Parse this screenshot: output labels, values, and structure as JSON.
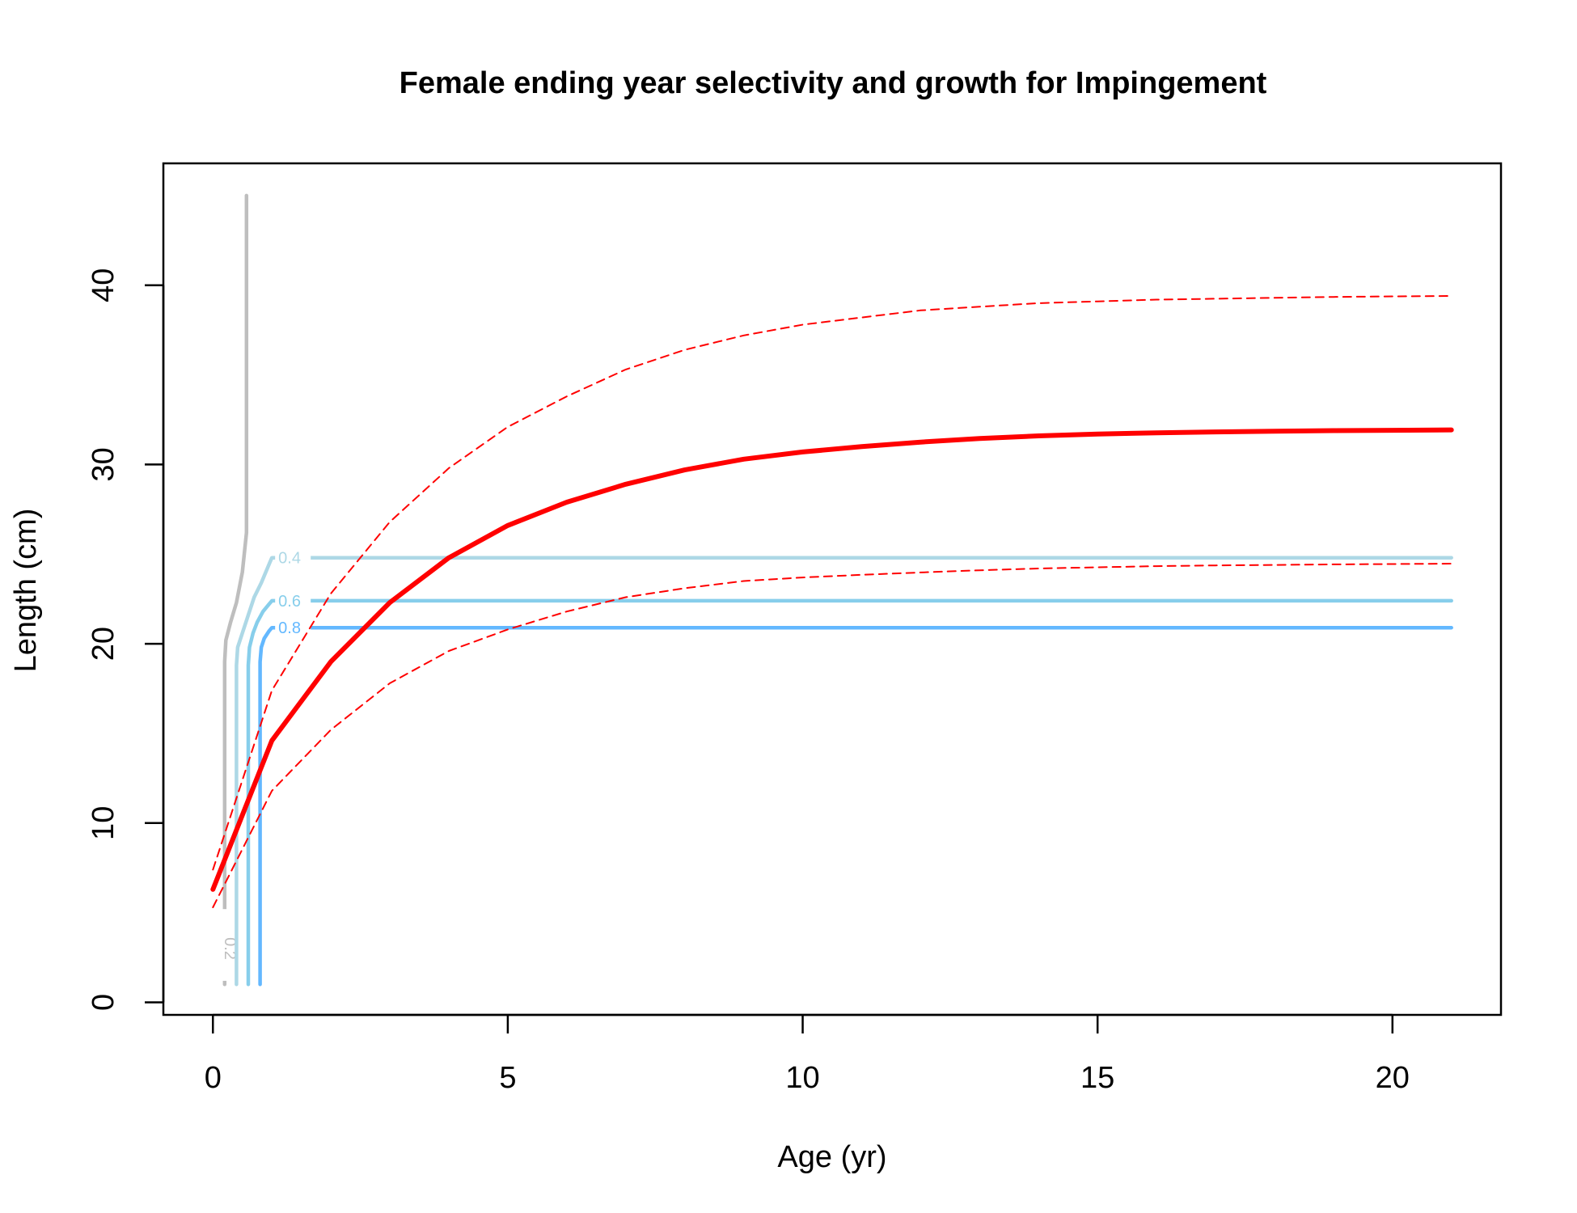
{
  "chart_data": {
    "type": "line",
    "title": "Female ending year selectivity and growth for Impingement",
    "xlabel": "Age (yr)",
    "ylabel": "Length (cm)",
    "xlim": [
      -0.84,
      21.84
    ],
    "ylim": [
      -0.7,
      46.8
    ],
    "x_ticks": [
      0,
      5,
      10,
      15,
      20
    ],
    "y_ticks": [
      0,
      10,
      20,
      30,
      40
    ],
    "grid": false,
    "legend": "none",
    "series": [
      {
        "color": "#FF0000",
        "style": "solid",
        "width": "thick",
        "x": [
          0,
          1,
          2,
          3,
          4,
          5,
          6,
          7,
          8,
          9,
          10,
          11,
          12,
          13,
          14,
          15,
          16,
          17,
          18,
          19,
          20,
          21
        ],
        "y": [
          6.3,
          14.6,
          19.0,
          22.3,
          24.8,
          26.6,
          27.9,
          28.9,
          29.7,
          30.3,
          30.7,
          31.0,
          31.25,
          31.45,
          31.6,
          31.7,
          31.77,
          31.82,
          31.86,
          31.89,
          31.91,
          31.93
        ]
      },
      {
        "color": "#FF0000",
        "style": "dashed",
        "width": "thin",
        "x": [
          0,
          1,
          2,
          3,
          4,
          5,
          6,
          7,
          8,
          9,
          10,
          11,
          12,
          13,
          14,
          15,
          16,
          17,
          18,
          19,
          20,
          21
        ],
        "y": [
          7.4,
          17.4,
          22.8,
          26.8,
          29.8,
          32.1,
          33.8,
          35.3,
          36.4,
          37.2,
          37.8,
          38.2,
          38.6,
          38.8,
          39.0,
          39.1,
          39.2,
          39.25,
          39.3,
          39.35,
          39.38,
          39.4
        ]
      },
      {
        "color": "#FF0000",
        "style": "dashed",
        "width": "thin",
        "x": [
          0,
          1,
          2,
          3,
          4,
          5,
          6,
          7,
          8,
          9,
          10,
          11,
          12,
          13,
          14,
          15,
          16,
          17,
          18,
          19,
          20,
          21
        ],
        "y": [
          5.3,
          11.8,
          15.2,
          17.8,
          19.6,
          20.8,
          21.8,
          22.6,
          23.1,
          23.5,
          23.7,
          23.85,
          23.98,
          24.1,
          24.2,
          24.27,
          24.33,
          24.37,
          24.4,
          24.43,
          24.45,
          24.47
        ]
      }
    ],
    "selectivity_contours": [
      {
        "label": "0.2",
        "color": "#BEBEBE",
        "x": [
          0.2,
          0.2,
          0.2,
          0.22,
          0.3,
          0.4,
          0.5,
          0.57,
          0.57,
          0.57
        ],
        "y": [
          1,
          12,
          19,
          20.2,
          21.2,
          22.3,
          24.0,
          26.2,
          35,
          45
        ]
      },
      {
        "label": "0.4",
        "color": "#ADD8E6",
        "x": [
          0.4,
          0.4,
          0.4,
          0.42,
          0.5,
          0.6,
          0.7,
          0.82,
          0.96,
          1.0,
          21.0
        ],
        "y": [
          1,
          12,
          18.8,
          19.8,
          20.6,
          21.6,
          22.6,
          23.4,
          24.5,
          24.8,
          24.8
        ]
      },
      {
        "label": "0.6",
        "color": "#87CEEB",
        "x": [
          0.6,
          0.6,
          0.6,
          0.62,
          0.68,
          0.75,
          0.85,
          0.95,
          1.0,
          21.0
        ],
        "y": [
          1,
          12,
          18.8,
          19.8,
          20.6,
          21.2,
          21.8,
          22.2,
          22.4,
          22.4
        ]
      },
      {
        "label": "0.8",
        "color": "#63B8FF",
        "x": [
          0.8,
          0.8,
          0.8,
          0.82,
          0.87,
          0.95,
          1.0,
          21.0
        ],
        "y": [
          1,
          12,
          19.0,
          19.8,
          20.3,
          20.7,
          20.9,
          20.9
        ]
      }
    ]
  }
}
